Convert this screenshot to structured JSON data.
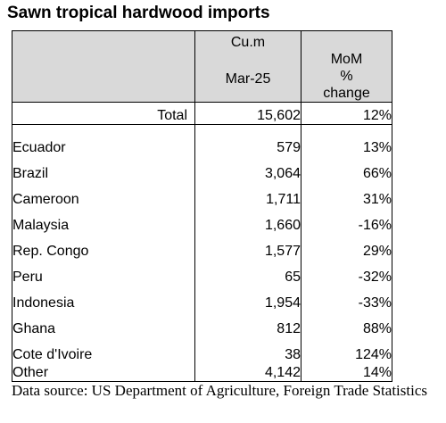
{
  "title": "Sawn tropical hardwood imports",
  "header": {
    "volume_unit": "Cu.m",
    "volume_period": "Mar-25",
    "mom_line1": "MoM",
    "mom_line2": "%",
    "mom_line3": "change"
  },
  "total": {
    "label": "Total",
    "volume": "15,602",
    "change": "12%"
  },
  "rows": [
    {
      "country": "Ecuador",
      "volume": "579",
      "change": "13%"
    },
    {
      "country": "Brazil",
      "volume": "3,064",
      "change": "66%"
    },
    {
      "country": "Cameroon",
      "volume": "1,711",
      "change": "31%"
    },
    {
      "country": "Malaysia",
      "volume": "1,660",
      "change": "-16%"
    },
    {
      "country": "Rep. Congo",
      "volume": "1,577",
      "change": "29%"
    },
    {
      "country": "Peru",
      "volume": "65",
      "change": "-32%"
    },
    {
      "country": "Indonesia",
      "volume": "1,954",
      "change": "-33%"
    },
    {
      "country": "Ghana",
      "volume": "812",
      "change": "88%"
    },
    {
      "country": "Cote d'Ivoire",
      "volume": "38",
      "change": "124%"
    },
    {
      "country": "Other",
      "volume": "4,142",
      "change": "14%"
    }
  ],
  "source": "Data source: US Department of Agriculture, Foreign Trade Statistics"
}
